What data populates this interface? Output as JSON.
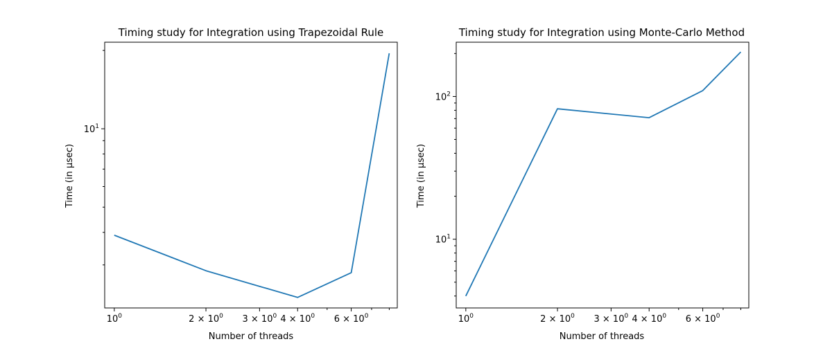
{
  "chart_data": [
    {
      "type": "line",
      "title": "Timing study for Integration using Trapezoidal Rule",
      "xlabel": "Number of threads",
      "ylabel": "Time (in μsec)",
      "xscale": "log",
      "yscale": "log",
      "xlim": [
        0.93,
        8.5
      ],
      "ylim": [
        2.05,
        21.5
      ],
      "grid": false,
      "x_ticks": [
        {
          "value": 1,
          "base": "10",
          "exp": "0"
        },
        {
          "value": 2,
          "base": "2 × 10",
          "exp": "0"
        },
        {
          "value": 3,
          "base": "3 × 10",
          "exp": "0"
        },
        {
          "value": 4,
          "base": "4 × 10",
          "exp": "0"
        },
        {
          "value": 6,
          "base": "6 × 10",
          "exp": "0"
        }
      ],
      "y_ticks": [
        {
          "value": 10,
          "base": "10",
          "exp": "1"
        }
      ],
      "series": [
        {
          "x": [
            1,
            2,
            4,
            6,
            8
          ],
          "y": [
            3.9,
            2.85,
            2.25,
            2.8,
            19.5
          ],
          "color": "#1f77b4"
        }
      ]
    },
    {
      "type": "line",
      "title": "Timing study for Integration using Monte-Carlo Method",
      "xlabel": "Number of threads",
      "ylabel": "Time (in μsec)",
      "xscale": "log",
      "yscale": "log",
      "xlim": [
        0.93,
        8.5
      ],
      "ylim": [
        3.3,
        240
      ],
      "grid": false,
      "x_ticks": [
        {
          "value": 1,
          "base": "10",
          "exp": "0"
        },
        {
          "value": 2,
          "base": "2 × 10",
          "exp": "0"
        },
        {
          "value": 3,
          "base": "3 × 10",
          "exp": "0"
        },
        {
          "value": 4,
          "base": "4 × 10",
          "exp": "0"
        },
        {
          "value": 6,
          "base": "6 × 10",
          "exp": "0"
        }
      ],
      "y_ticks": [
        {
          "value": 10,
          "base": "10",
          "exp": "1"
        },
        {
          "value": 100,
          "base": "10",
          "exp": "2"
        }
      ],
      "series": [
        {
          "x": [
            1,
            2,
            4,
            6,
            8
          ],
          "y": [
            4.0,
            82,
            71,
            110,
            205
          ],
          "color": "#1f77b4"
        }
      ]
    }
  ]
}
